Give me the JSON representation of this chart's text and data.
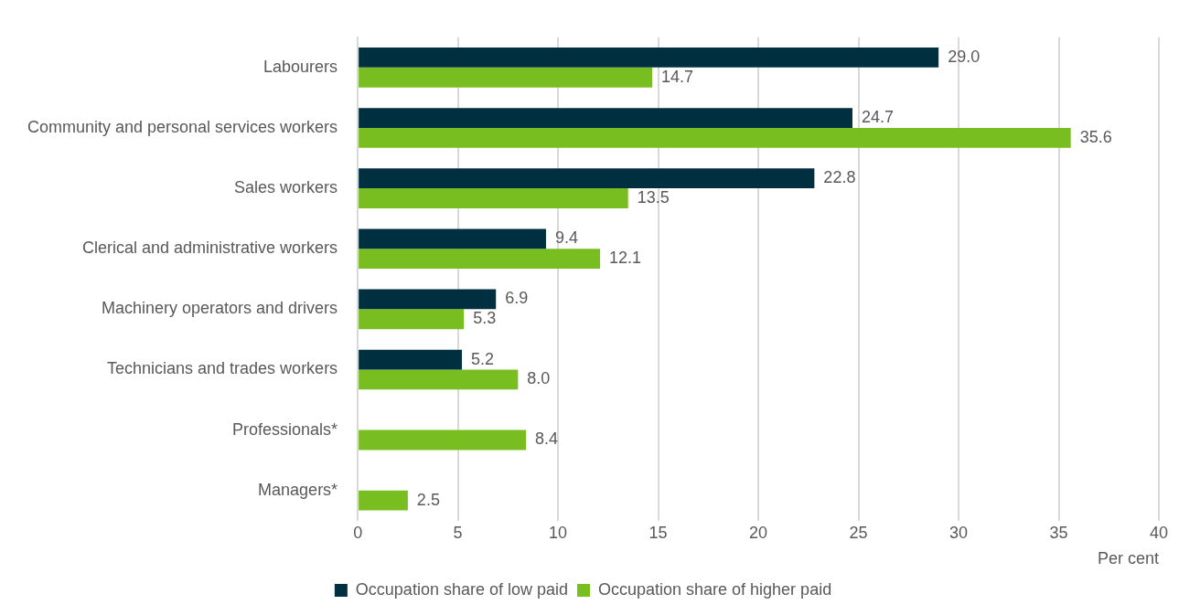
{
  "chart_data": {
    "type": "bar",
    "orientation": "horizontal",
    "categories": [
      "Labourers",
      "Community and personal services workers",
      "Sales workers",
      "Clerical and administrative workers",
      "Machinery operators and drivers",
      "Technicians and trades workers",
      "Professionals*",
      "Managers*"
    ],
    "series": [
      {
        "name": "Occupation share of low paid",
        "color": "#003040",
        "values": [
          29.0,
          24.7,
          22.8,
          9.4,
          6.9,
          5.2,
          null,
          null
        ],
        "value_labels": [
          "29.0",
          "24.7",
          "22.8",
          "9.4",
          "6.9",
          "5.2",
          null,
          null
        ]
      },
      {
        "name": "Occupation share of higher paid",
        "color": "#78be20",
        "values": [
          14.7,
          35.6,
          13.5,
          12.1,
          5.3,
          8.0,
          8.4,
          2.5
        ],
        "value_labels": [
          "14.7",
          "35.6",
          "13.5",
          "12.1",
          "5.3",
          "8.0",
          "8.4",
          "2.5"
        ]
      }
    ],
    "xlabel": "Per cent",
    "xlim": [
      0,
      40
    ],
    "xticks": [
      0,
      5,
      10,
      15,
      20,
      25,
      30,
      35,
      40
    ],
    "grid": "x",
    "legend": "bottom"
  }
}
